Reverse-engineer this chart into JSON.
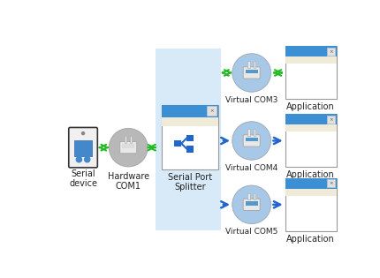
{
  "bg_color": "#ffffff",
  "splitter_bg": "#d8eaf7",
  "blue_header": "#3d8fd4",
  "light_blue_circle": "#a8c8e8",
  "gray_circle": "#b8b8b8",
  "green_arrow": "#22bb22",
  "blue_arrow": "#2266cc",
  "window_border": "#999999",
  "window_cream": "#f0ead8",
  "window_white": "#ffffff",
  "splitter_icon_blue": "#2266cc",
  "labels": {
    "serial_device": "Serial\ndevice",
    "hardware_com1": "Hardware\nCOM1",
    "serial_port_splitter": "Serial Port\nSplitter",
    "virtual_com3": "Virtual COM3",
    "virtual_com4": "Virtual COM4",
    "virtual_com5": "Virtual COM5",
    "application": "Application"
  },
  "font_size_labels": 7.0,
  "font_size_small": 6.5
}
